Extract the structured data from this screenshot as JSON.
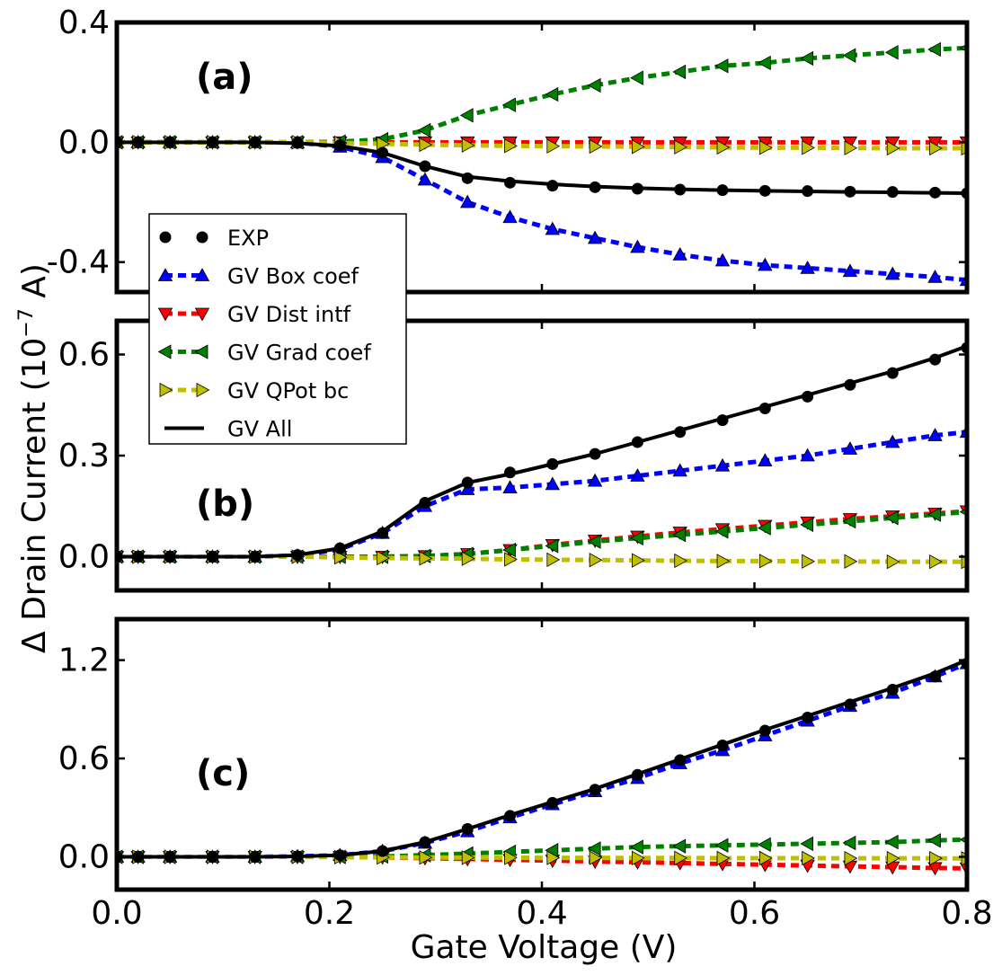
{
  "chart_data": {
    "type": "line",
    "xlabel": "Gate Voltage (V)",
    "ylabel_prefix": "Δ Drain Current (10",
    "ylabel_exp": "−7",
    "ylabel_suffix": " A)",
    "xlim": [
      0.0,
      0.8
    ],
    "xticks": [
      "0.0",
      "0.2",
      "0.4",
      "0.6",
      "0.8"
    ],
    "x": [
      0.0,
      0.02,
      0.05,
      0.09,
      0.13,
      0.17,
      0.21,
      0.25,
      0.29,
      0.33,
      0.37,
      0.41,
      0.45,
      0.49,
      0.53,
      0.57,
      0.61,
      0.65,
      0.69,
      0.73,
      0.77,
      0.8
    ],
    "legend": [
      {
        "name": "EXP",
        "color": "#000000",
        "marker": "circle",
        "style": "dotted"
      },
      {
        "name": "GV Box coef",
        "color": "#0000ff",
        "marker": "triangle-up",
        "style": "dashed"
      },
      {
        "name": "GV Dist intf",
        "color": "#ff0000",
        "marker": "triangle-down",
        "style": "dashed"
      },
      {
        "name": "GV Grad coef",
        "color": "#008000",
        "marker": "triangle-left",
        "style": "dashed"
      },
      {
        "name": "GV QPot bc",
        "color": "#bfbf00",
        "marker": "triangle-right",
        "style": "dashed"
      },
      {
        "name": "GV All",
        "color": "#000000",
        "marker": "none",
        "style": "solid"
      }
    ],
    "panels": [
      {
        "label": "(a)",
        "ylim": [
          -0.5,
          0.4
        ],
        "yticks": [
          "0.4",
          "0.0",
          "-0.4"
        ],
        "ytick_values": [
          0.4,
          0.0,
          -0.4
        ],
        "series": [
          {
            "name": "GV Box coef",
            "values": [
              0,
              0,
              0,
              0,
              0,
              -0.001,
              -0.015,
              -0.05,
              -0.125,
              -0.2,
              -0.25,
              -0.29,
              -0.32,
              -0.35,
              -0.375,
              -0.395,
              -0.41,
              -0.42,
              -0.43,
              -0.44,
              -0.45,
              -0.46
            ]
          },
          {
            "name": "GV Dist intf",
            "values": [
              0,
              0,
              0,
              0,
              0,
              0,
              0,
              0,
              0,
              0,
              0,
              0,
              0,
              0,
              0,
              0,
              0,
              0,
              0,
              0,
              0,
              0
            ]
          },
          {
            "name": "GV Grad coef",
            "values": [
              0,
              0,
              0,
              0,
              0,
              0,
              0.002,
              0.01,
              0.04,
              0.09,
              0.125,
              0.16,
              0.19,
              0.215,
              0.235,
              0.255,
              0.265,
              0.28,
              0.29,
              0.3,
              0.31,
              0.315
            ]
          },
          {
            "name": "GV QPot bc",
            "values": [
              0,
              0,
              0,
              0,
              0,
              0,
              -0.002,
              -0.005,
              -0.008,
              -0.01,
              -0.012,
              -0.013,
              -0.014,
              -0.015,
              -0.016,
              -0.017,
              -0.018,
              -0.018,
              -0.019,
              -0.02,
              -0.02,
              -0.02
            ]
          },
          {
            "name": "EXP",
            "values": [
              0,
              0,
              0,
              0,
              0,
              -0.002,
              -0.01,
              -0.035,
              -0.08,
              -0.12,
              -0.135,
              -0.145,
              -0.15,
              -0.155,
              -0.158,
              -0.16,
              -0.162,
              -0.163,
              -0.165,
              -0.166,
              -0.168,
              -0.17
            ]
          },
          {
            "name": "GV All",
            "values": [
              0,
              0,
              0,
              0,
              0,
              -0.003,
              -0.012,
              -0.035,
              -0.08,
              -0.115,
              -0.13,
              -0.14,
              -0.148,
              -0.153,
              -0.157,
              -0.16,
              -0.162,
              -0.164,
              -0.166,
              -0.167,
              -0.169,
              -0.17
            ]
          }
        ]
      },
      {
        "label": "(b)",
        "ylim": [
          -0.1,
          0.7
        ],
        "yticks": [
          "0.6",
          "0.3",
          "0.0"
        ],
        "ytick_values": [
          0.6,
          0.3,
          0.0
        ],
        "series": [
          {
            "name": "GV Box coef",
            "values": [
              0,
              0,
              0,
              0,
              0,
              0.003,
              0.022,
              0.07,
              0.15,
              0.2,
              0.205,
              0.215,
              0.225,
              0.24,
              0.255,
              0.27,
              0.285,
              0.3,
              0.32,
              0.34,
              0.36,
              0.37
            ]
          },
          {
            "name": "GV Dist intf",
            "values": [
              0,
              0,
              0,
              0,
              0,
              0,
              0,
              0,
              0.002,
              0.008,
              0.02,
              0.035,
              0.048,
              0.06,
              0.072,
              0.082,
              0.092,
              0.102,
              0.112,
              0.12,
              0.128,
              0.135
            ]
          },
          {
            "name": "GV Grad coef",
            "values": [
              0,
              0,
              0,
              0,
              0,
              0,
              0,
              0,
              0.002,
              0.008,
              0.02,
              0.032,
              0.045,
              0.055,
              0.065,
              0.075,
              0.085,
              0.095,
              0.105,
              0.115,
              0.125,
              0.133
            ]
          },
          {
            "name": "GV QPot bc",
            "values": [
              0,
              0,
              0,
              0,
              0,
              0,
              -0.002,
              -0.004,
              -0.005,
              -0.006,
              -0.008,
              -0.009,
              -0.01,
              -0.011,
              -0.012,
              -0.013,
              -0.013,
              -0.014,
              -0.014,
              -0.015,
              -0.015,
              -0.015
            ]
          },
          {
            "name": "EXP",
            "values": [
              0,
              0,
              0,
              0,
              0,
              0.005,
              0.025,
              0.07,
              0.16,
              0.22,
              0.25,
              0.275,
              0.305,
              0.34,
              0.37,
              0.405,
              0.44,
              0.475,
              0.51,
              0.545,
              0.585,
              0.62
            ]
          },
          {
            "name": "GV All",
            "values": [
              0,
              0,
              0,
              0,
              0,
              0.005,
              0.025,
              0.075,
              0.165,
              0.22,
              0.245,
              0.275,
              0.305,
              0.34,
              0.375,
              0.41,
              0.445,
              0.48,
              0.515,
              0.55,
              0.59,
              0.625
            ]
          }
        ]
      },
      {
        "label": "(c)",
        "ylim": [
          -0.2,
          1.45
        ],
        "yticks": [
          "1.2",
          "0.6",
          "0.0"
        ],
        "ytick_values": [
          1.2,
          0.6,
          0.0
        ],
        "series": [
          {
            "name": "GV Box coef",
            "values": [
              0,
              0,
              0,
              0,
              0,
              0.003,
              0.01,
              0.035,
              0.085,
              0.155,
              0.24,
              0.32,
              0.4,
              0.48,
              0.57,
              0.65,
              0.74,
              0.83,
              0.92,
              1.0,
              1.1,
              1.18
            ]
          },
          {
            "name": "GV Dist intf",
            "values": [
              0,
              0,
              0,
              0,
              0,
              0,
              0,
              -0.003,
              -0.008,
              -0.013,
              -0.018,
              -0.023,
              -0.028,
              -0.033,
              -0.038,
              -0.043,
              -0.048,
              -0.053,
              -0.058,
              -0.063,
              -0.068,
              -0.07
            ]
          },
          {
            "name": "GV Grad coef",
            "values": [
              0,
              0,
              0,
              0,
              0,
              0,
              0,
              0.003,
              0.01,
              0.02,
              0.03,
              0.04,
              0.05,
              0.06,
              0.065,
              0.07,
              0.075,
              0.08,
              0.085,
              0.09,
              0.1,
              0.105
            ]
          },
          {
            "name": "GV QPot bc",
            "values": [
              0,
              0,
              0,
              0,
              0,
              0,
              -0.002,
              -0.003,
              -0.004,
              -0.005,
              -0.005,
              -0.006,
              -0.006,
              -0.007,
              -0.007,
              -0.008,
              -0.008,
              -0.008,
              -0.009,
              -0.009,
              -0.009,
              -0.01
            ]
          },
          {
            "name": "EXP",
            "values": [
              0,
              0,
              0,
              0,
              0,
              0.003,
              0.01,
              0.035,
              0.09,
              0.17,
              0.25,
              0.33,
              0.41,
              0.5,
              0.59,
              0.68,
              0.77,
              0.85,
              0.93,
              1.02,
              1.1,
              1.18
            ]
          },
          {
            "name": "GV All",
            "values": [
              0,
              0,
              0,
              0,
              0,
              0.003,
              0.01,
              0.035,
              0.09,
              0.17,
              0.255,
              0.335,
              0.415,
              0.505,
              0.595,
              0.685,
              0.775,
              0.86,
              0.945,
              1.03,
              1.12,
              1.2
            ]
          }
        ]
      }
    ]
  }
}
